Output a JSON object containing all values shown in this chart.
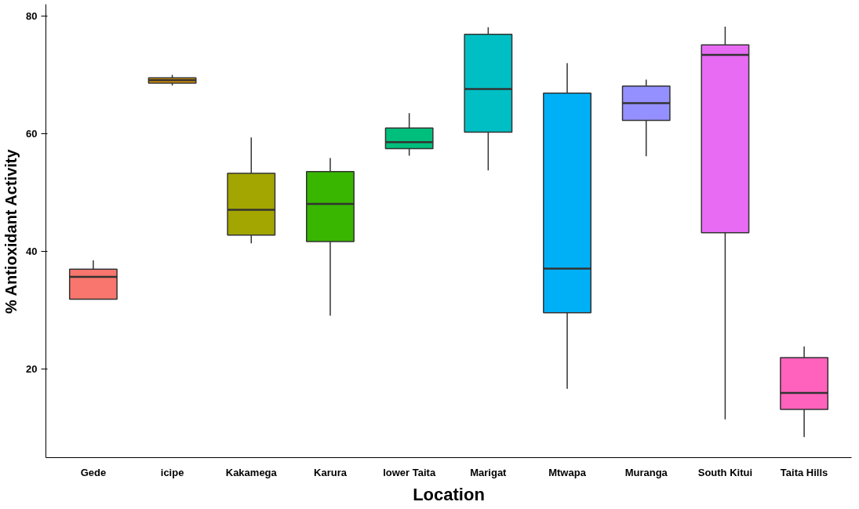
{
  "chart_data": {
    "type": "box",
    "xlabel": "Location",
    "ylabel": "% Antioxidant Activity",
    "categories": [
      "Gede",
      "icipe",
      "Kakamega",
      "Karura",
      "lower Taita",
      "Marigat",
      "Mtwapa",
      "Muranga",
      "South Kitui",
      "Taita Hills"
    ],
    "colors": [
      "#f8766d",
      "#d89000",
      "#a3a500",
      "#39b600",
      "#00bf7d",
      "#00bfc4",
      "#00b0f6",
      "#9590ff",
      "#e76bf3",
      "#ff62bc"
    ],
    "boxes": [
      {
        "low": 31.9,
        "q1": 31.9,
        "median": 35.7,
        "q3": 37.0,
        "high": 38.5
      },
      {
        "low": 68.2,
        "q1": 68.6,
        "median": 69.1,
        "q3": 69.5,
        "high": 70.0
      },
      {
        "low": 41.4,
        "q1": 42.8,
        "median": 47.1,
        "q3": 53.3,
        "high": 59.4
      },
      {
        "low": 29.1,
        "q1": 41.7,
        "median": 48.1,
        "q3": 53.6,
        "high": 55.9
      },
      {
        "low": 56.3,
        "q1": 57.5,
        "median": 58.6,
        "q3": 61.0,
        "high": 63.5
      },
      {
        "low": 53.8,
        "q1": 60.3,
        "median": 67.6,
        "q3": 76.9,
        "high": 78.1
      },
      {
        "low": 16.7,
        "q1": 29.6,
        "median": 37.1,
        "q3": 66.9,
        "high": 72.0
      },
      {
        "low": 56.2,
        "q1": 62.3,
        "median": 65.2,
        "q3": 68.1,
        "high": 69.2
      },
      {
        "low": 11.5,
        "q1": 43.2,
        "median": 73.4,
        "q3": 75.1,
        "high": 78.2
      },
      {
        "low": 8.5,
        "q1": 13.2,
        "median": 16.0,
        "q3": 22.0,
        "high": 23.9
      }
    ],
    "ylim": [
      5,
      82
    ],
    "yticks": [
      20,
      40,
      60,
      80
    ],
    "grid": false
  }
}
